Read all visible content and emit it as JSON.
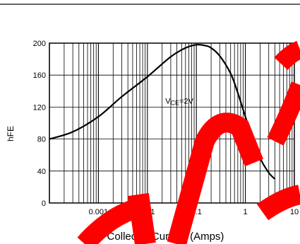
{
  "chart_data": {
    "type": "line",
    "title": "",
    "xlabel": "Ic - Collector Current (Amps)",
    "ylabel": "hFE",
    "x_scale": "log",
    "xlim": [
      0.0001,
      10
    ],
    "ylim": [
      0,
      200
    ],
    "x_tick_labels": [
      {
        "value": 0.001,
        "label": "0.001"
      },
      {
        "value": 0.01,
        "label": "0.01"
      },
      {
        "value": 0.1,
        "label": "0.1"
      },
      {
        "value": 1,
        "label": "1"
      },
      {
        "value": 10,
        "label": "10"
      }
    ],
    "y_ticks": [
      0,
      40,
      80,
      120,
      160,
      200
    ],
    "y_tick_labels": [
      "0",
      "40",
      "80",
      "120",
      "160",
      "200"
    ],
    "grid": true,
    "series": [
      {
        "name": "VCE=2V",
        "x": [
          0.0001,
          0.0003,
          0.001,
          0.003,
          0.01,
          0.03,
          0.06,
          0.1,
          0.15,
          0.2,
          0.3,
          0.5,
          0.7,
          1.0,
          1.5,
          2.0,
          3.0,
          4.0
        ],
        "y": [
          80,
          89,
          108,
          133,
          158,
          183,
          194,
          198,
          197,
          194,
          184,
          162,
          138,
          108,
          76,
          56,
          38,
          30
        ]
      }
    ],
    "annotations": [
      {
        "main": "V",
        "sub": "CE",
        "rest": "=2V",
        "x": 0.1,
        "y": 128
      }
    ]
  },
  "watermark": {
    "text": "SOS",
    "color": "#ff0000"
  }
}
